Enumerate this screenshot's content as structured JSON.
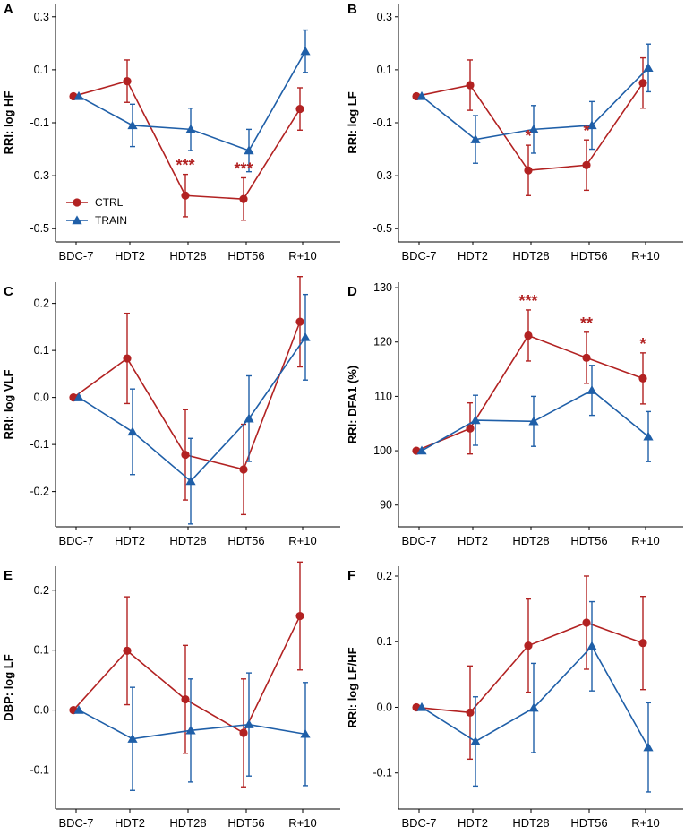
{
  "colors": {
    "ctrl": "#B22222",
    "train": "#1F5FA8",
    "axis": "#000000"
  },
  "chart_data": [
    {
      "panel": "A",
      "type": "line",
      "ylabel": "RRI: log HF",
      "categories": [
        "BDC-7",
        "HDT2",
        "HDT28",
        "HDT56",
        "R+10"
      ],
      "ylim": [
        -0.55,
        0.35
      ],
      "yticks": [
        -0.5,
        -0.3,
        -0.1,
        0.1,
        0.3
      ],
      "yticklabels": [
        "-0.5",
        "-0.3",
        "-0.1",
        "0.1",
        "0.3"
      ],
      "series": [
        {
          "name": "CTRL",
          "marker": "circle",
          "values": [
            0.0,
            0.057,
            -0.375,
            -0.388,
            -0.048
          ],
          "err": [
            0.0,
            0.08,
            0.08,
            0.08,
            0.08
          ]
        },
        {
          "name": "TRAIN",
          "marker": "triangle",
          "values": [
            0.0,
            -0.11,
            -0.125,
            -0.205,
            0.17
          ],
          "err": [
            0.0,
            0.08,
            0.08,
            0.08,
            0.08
          ]
        }
      ],
      "significance": [
        {
          "index": 2,
          "label": "***"
        },
        {
          "index": 3,
          "label": "***"
        }
      ],
      "legend": {
        "position": "bottom-left",
        "entries": [
          "CTRL",
          "TRAIN"
        ]
      }
    },
    {
      "panel": "B",
      "type": "line",
      "ylabel": "RRI: log LF",
      "categories": [
        "BDC-7",
        "HDT2",
        "HDT28",
        "HDT56",
        "R+10"
      ],
      "ylim": [
        -0.55,
        0.35
      ],
      "yticks": [
        -0.5,
        -0.3,
        -0.1,
        0.1,
        0.3
      ],
      "yticklabels": [
        "-0.5",
        "-0.3",
        "-0.1",
        "0.1",
        "0.3"
      ],
      "series": [
        {
          "name": "CTRL",
          "marker": "circle",
          "values": [
            0.0,
            0.042,
            -0.28,
            -0.26,
            0.05
          ],
          "err": [
            0.0,
            0.095,
            0.095,
            0.095,
            0.095
          ]
        },
        {
          "name": "TRAIN",
          "marker": "triangle",
          "values": [
            0.0,
            -0.163,
            -0.125,
            -0.11,
            0.107
          ],
          "err": [
            0.0,
            0.09,
            0.09,
            0.09,
            0.09
          ]
        }
      ],
      "significance": [
        {
          "index": 2,
          "label": "*"
        },
        {
          "index": 3,
          "label": "*"
        }
      ]
    },
    {
      "panel": "C",
      "type": "line",
      "ylabel": "RRI: log VLF",
      "categories": [
        "BDC-7",
        "HDT2",
        "HDT28",
        "HDT56",
        "R+10"
      ],
      "ylim": [
        -0.275,
        0.245
      ],
      "yticks": [
        -0.2,
        -0.1,
        0.0,
        0.1,
        0.2
      ],
      "yticklabels": [
        "-0.2",
        "-0.1",
        "0.0",
        "0.1",
        "0.2"
      ],
      "series": [
        {
          "name": "CTRL",
          "marker": "circle",
          "values": [
            0.0,
            0.083,
            -0.122,
            -0.153,
            0.161
          ],
          "err": [
            0.0,
            0.096,
            0.096,
            0.096,
            0.096
          ]
        },
        {
          "name": "TRAIN",
          "marker": "triangle",
          "values": [
            0.0,
            -0.073,
            -0.178,
            -0.045,
            0.128
          ],
          "err": [
            0.0,
            0.091,
            0.091,
            0.091,
            0.091
          ]
        }
      ],
      "significance": []
    },
    {
      "panel": "D",
      "type": "line",
      "ylabel": "RRI: DFA1 (%)",
      "categories": [
        "BDC-7",
        "HDT2",
        "HDT28",
        "HDT56",
        "R+10"
      ],
      "ylim": [
        86,
        131
      ],
      "yticks": [
        90,
        100,
        110,
        120,
        130
      ],
      "yticklabels": [
        "90",
        "100",
        "110",
        "120",
        "130"
      ],
      "series": [
        {
          "name": "CTRL",
          "marker": "circle",
          "values": [
            100,
            104.1,
            121.2,
            117.1,
            113.3
          ],
          "err": [
            0,
            4.7,
            4.7,
            4.7,
            4.7
          ]
        },
        {
          "name": "TRAIN",
          "marker": "triangle",
          "values": [
            100,
            105.6,
            105.4,
            111.1,
            102.6
          ],
          "err": [
            0,
            4.6,
            4.6,
            4.6,
            4.6
          ]
        }
      ],
      "significance": [
        {
          "index": 2,
          "label": "***"
        },
        {
          "index": 3,
          "label": "**"
        },
        {
          "index": 4,
          "label": "*"
        }
      ]
    },
    {
      "panel": "E",
      "type": "line",
      "ylabel": "DBP: log LF",
      "categories": [
        "BDC-7",
        "HDT2",
        "HDT28",
        "HDT56",
        "R+10"
      ],
      "ylim": [
        -0.165,
        0.24
      ],
      "yticks": [
        -0.1,
        0.0,
        0.1,
        0.2
      ],
      "yticklabels": [
        "-0.1",
        "0.0",
        "0.1",
        "0.2"
      ],
      "series": [
        {
          "name": "CTRL",
          "marker": "circle",
          "values": [
            0.0,
            0.099,
            0.018,
            -0.038,
            0.157
          ],
          "err": [
            0.0,
            0.09,
            0.09,
            0.09,
            0.09
          ]
        },
        {
          "name": "TRAIN",
          "marker": "triangle",
          "values": [
            0.0,
            -0.048,
            -0.034,
            -0.024,
            -0.04
          ],
          "err": [
            0.0,
            0.086,
            0.086,
            0.086,
            0.086
          ]
        }
      ],
      "significance": []
    },
    {
      "panel": "F",
      "type": "line",
      "ylabel": "RRI: log LF/HF",
      "categories": [
        "BDC-7",
        "HDT2",
        "HDT28",
        "HDT56",
        "R+10"
      ],
      "ylim": [
        -0.155,
        0.215
      ],
      "yticks": [
        -0.1,
        0.0,
        0.1,
        0.2
      ],
      "yticklabels": [
        "-0.1",
        "0.0",
        "0.1",
        "0.2"
      ],
      "series": [
        {
          "name": "CTRL",
          "marker": "circle",
          "values": [
            0.0,
            -0.008,
            0.094,
            0.129,
            0.098
          ],
          "err": [
            0.0,
            0.071,
            0.071,
            0.071,
            0.071
          ]
        },
        {
          "name": "TRAIN",
          "marker": "triangle",
          "values": [
            0.0,
            -0.052,
            -0.001,
            0.093,
            -0.061
          ],
          "err": [
            0.0,
            0.068,
            0.068,
            0.068,
            0.068
          ]
        }
      ],
      "significance": []
    }
  ]
}
